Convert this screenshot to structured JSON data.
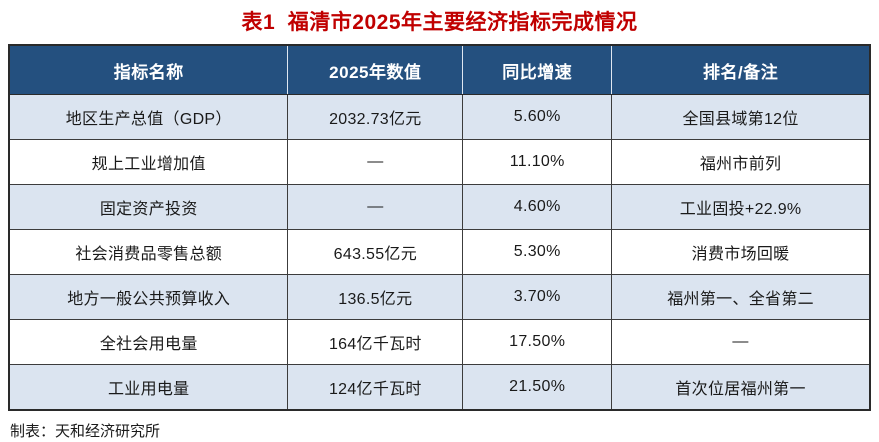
{
  "page": {
    "title": "表1  福清市2025年主要经济指标完成情况"
  },
  "table": {
    "columns": [
      "指标名称",
      "2025年数值",
      "同比增速",
      "排名/备注"
    ],
    "rows": [
      [
        "地区生产总值（GDP）",
        "2032.73亿元",
        "5.60%",
        "全国县域第12位"
      ],
      [
        "规上工业增加值",
        "—",
        "11.10%",
        "福州市前列"
      ],
      [
        "固定资产投资",
        "—",
        "4.60%",
        "工业固投+22.9%"
      ],
      [
        "社会消费品零售总额",
        "643.55亿元",
        "5.30%",
        "消费市场回暖"
      ],
      [
        "地方一般公共预算收入",
        "136.5亿元",
        "3.70%",
        "福州第一、全省第二"
      ],
      [
        "全社会用电量",
        "164亿千瓦时",
        "17.50%",
        "—"
      ],
      [
        "工业用电量",
        "124亿千瓦时",
        "21.50%",
        "首次位居福州第一"
      ]
    ]
  },
  "footer": {
    "credit": "制表：天和经济研究所"
  },
  "colors": {
    "title_text": "#c00000",
    "header_background": "#24507f",
    "header_text": "#ffffff",
    "alt_row_background": "#dbe4f0",
    "grid_border": "#3c3c3c"
  }
}
